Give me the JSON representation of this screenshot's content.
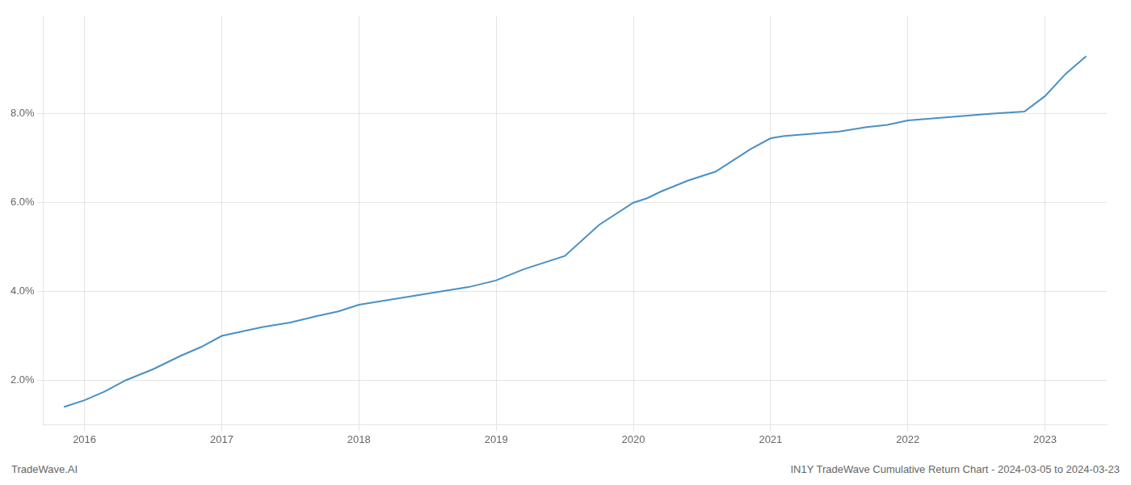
{
  "chart_data": {
    "type": "line",
    "x": [
      2015.85,
      2016.0,
      2016.15,
      2016.3,
      2016.5,
      2016.7,
      2016.85,
      2017.0,
      2017.15,
      2017.3,
      2017.5,
      2017.7,
      2017.85,
      2018.0,
      2018.2,
      2018.4,
      2018.6,
      2018.8,
      2019.0,
      2019.2,
      2019.5,
      2019.75,
      2020.0,
      2020.1,
      2020.2,
      2020.4,
      2020.6,
      2020.85,
      2021.0,
      2021.1,
      2021.3,
      2021.5,
      2021.7,
      2021.85,
      2022.0,
      2022.2,
      2022.4,
      2022.6,
      2022.85,
      2023.0,
      2023.15,
      2023.3
    ],
    "values": [
      1.4,
      1.55,
      1.75,
      2.0,
      2.25,
      2.55,
      2.75,
      3.0,
      3.1,
      3.2,
      3.3,
      3.45,
      3.55,
      3.7,
      3.8,
      3.9,
      4.0,
      4.1,
      4.25,
      4.5,
      4.8,
      5.5,
      6.0,
      6.1,
      6.25,
      6.5,
      6.7,
      7.2,
      7.45,
      7.5,
      7.55,
      7.6,
      7.7,
      7.75,
      7.85,
      7.9,
      7.95,
      8.0,
      8.05,
      8.4,
      8.9,
      9.3
    ],
    "color": "#4a90c4",
    "marker": "none",
    "xlim": [
      2015.7,
      2023.45
    ],
    "xticks": [
      2016,
      2017,
      2018,
      2019,
      2020,
      2021,
      2022,
      2023
    ],
    "ylim": [
      1.0,
      10.2
    ],
    "yticks": [
      {
        "value": 2.0,
        "label": "2.0%"
      },
      {
        "value": 4.0,
        "label": "4.0%"
      },
      {
        "value": 6.0,
        "label": "6.0%"
      },
      {
        "value": 8.0,
        "label": "8.0%"
      }
    ],
    "grid": true,
    "annotations": [
      "TradeWave.AI",
      "IN1Y TradeWave Cumulative Return Chart - 2024-03-05 to 2024-03-23"
    ]
  }
}
